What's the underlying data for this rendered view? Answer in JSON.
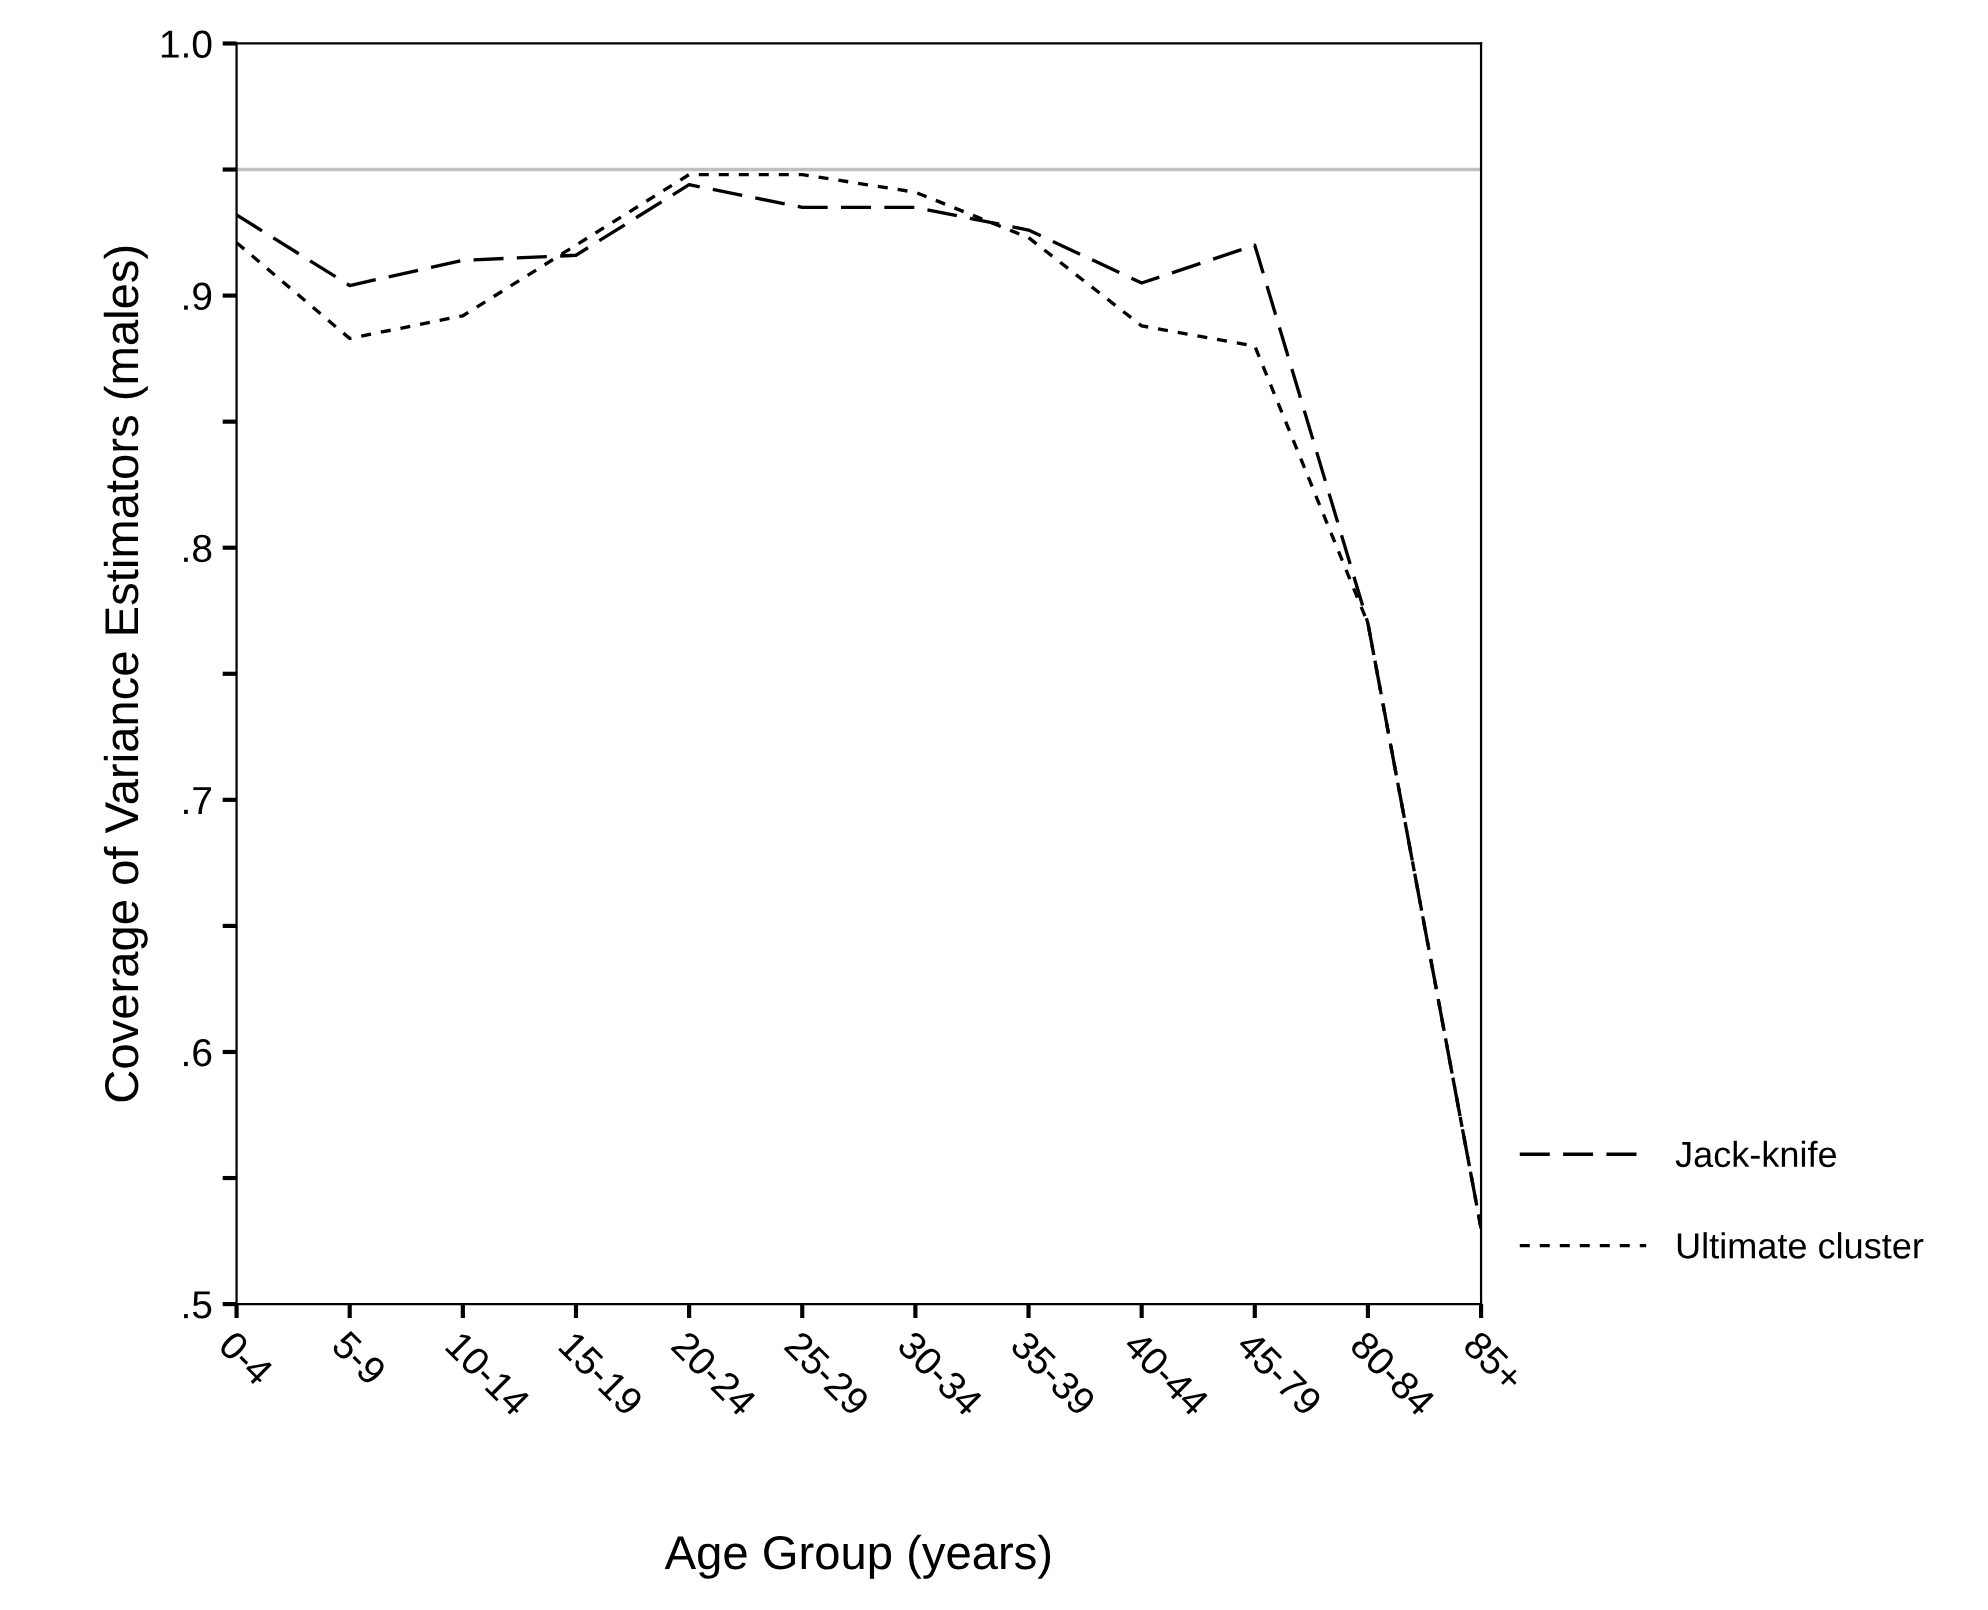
{
  "chart_data": {
    "type": "line",
    "xlabel": "Age Group (years)",
    "ylabel": "Coverage of Variance Estimators (males)",
    "categories": [
      "0-4",
      "5-9",
      "10-14",
      "15-19",
      "20-24",
      "25-29",
      "30-34",
      "35-39",
      "40-44",
      "45-79",
      "80-84",
      "85+"
    ],
    "series": [
      {
        "name": "Jack-knife",
        "color": "#000000",
        "line_style": "dashed",
        "values": [
          0.932,
          0.904,
          0.914,
          0.916,
          0.944,
          0.935,
          0.935,
          0.926,
          0.905,
          0.92,
          0.77,
          0.53
        ]
      },
      {
        "name": "Ultimate cluster",
        "color": "#000000",
        "line_style": "dotted",
        "values": [
          0.921,
          0.883,
          0.892,
          0.92,
          0.948,
          0.948,
          0.941,
          0.923,
          0.888,
          0.88,
          0.77,
          0.53
        ]
      }
    ],
    "ylim": [
      0.5,
      1.0
    ],
    "yticks": [
      {
        "value": 0.5,
        "label": ".5"
      },
      {
        "value": 0.55,
        "label": null
      },
      {
        "value": 0.6,
        "label": ".6"
      },
      {
        "value": 0.65,
        "label": null
      },
      {
        "value": 0.7,
        "label": ".7"
      },
      {
        "value": 0.75,
        "label": null
      },
      {
        "value": 0.8,
        "label": ".8"
      },
      {
        "value": 0.85,
        "label": null
      },
      {
        "value": 0.9,
        "label": ".9"
      },
      {
        "value": 0.95,
        "label": null
      },
      {
        "value": 1.0,
        "label": "1.0"
      }
    ],
    "ref_lines": [
      {
        "axis": "y",
        "value": 0.95,
        "label": null,
        "color": "#c0c0c0"
      }
    ],
    "grid": false,
    "legend": "right",
    "marker": "none"
  }
}
